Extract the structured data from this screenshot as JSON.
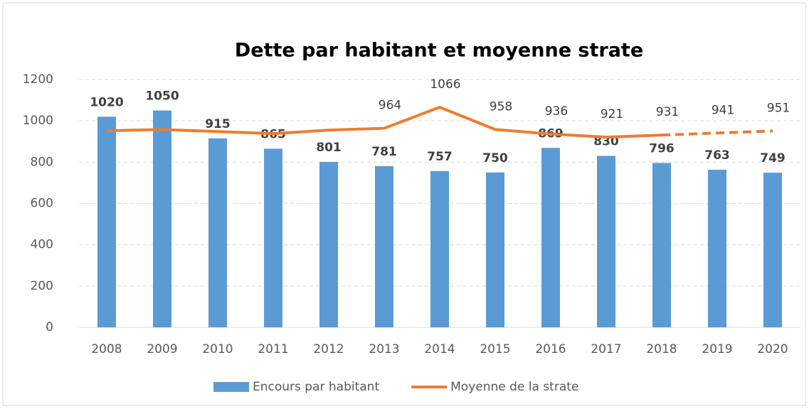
{
  "chart_data": {
    "type": "bar_line",
    "title": "Dette par habitant et moyenne strate",
    "categories": [
      "2008",
      "2009",
      "2010",
      "2011",
      "2012",
      "2013",
      "2014",
      "2015",
      "2016",
      "2017",
      "2018",
      "2019",
      "2020"
    ],
    "series": [
      {
        "name": "Encours par habitant",
        "type": "bar",
        "color": "#5b9bd5",
        "values": [
          1020,
          1050,
          915,
          865,
          801,
          781,
          757,
          750,
          869,
          830,
          796,
          763,
          749
        ]
      },
      {
        "name": "Moyenne de la strate",
        "type": "line",
        "color": "#ed7d31",
        "values": [
          952,
          958,
          948,
          938,
          955,
          964,
          1066,
          958,
          936,
          921,
          931,
          941,
          951
        ],
        "labels_from": "2013",
        "dashed_from": "2018"
      }
    ],
    "ylim": [
      0,
      1200
    ],
    "yticks": [
      0,
      200,
      400,
      600,
      800,
      1000,
      1200
    ],
    "grid": true,
    "legend": "bottom"
  }
}
